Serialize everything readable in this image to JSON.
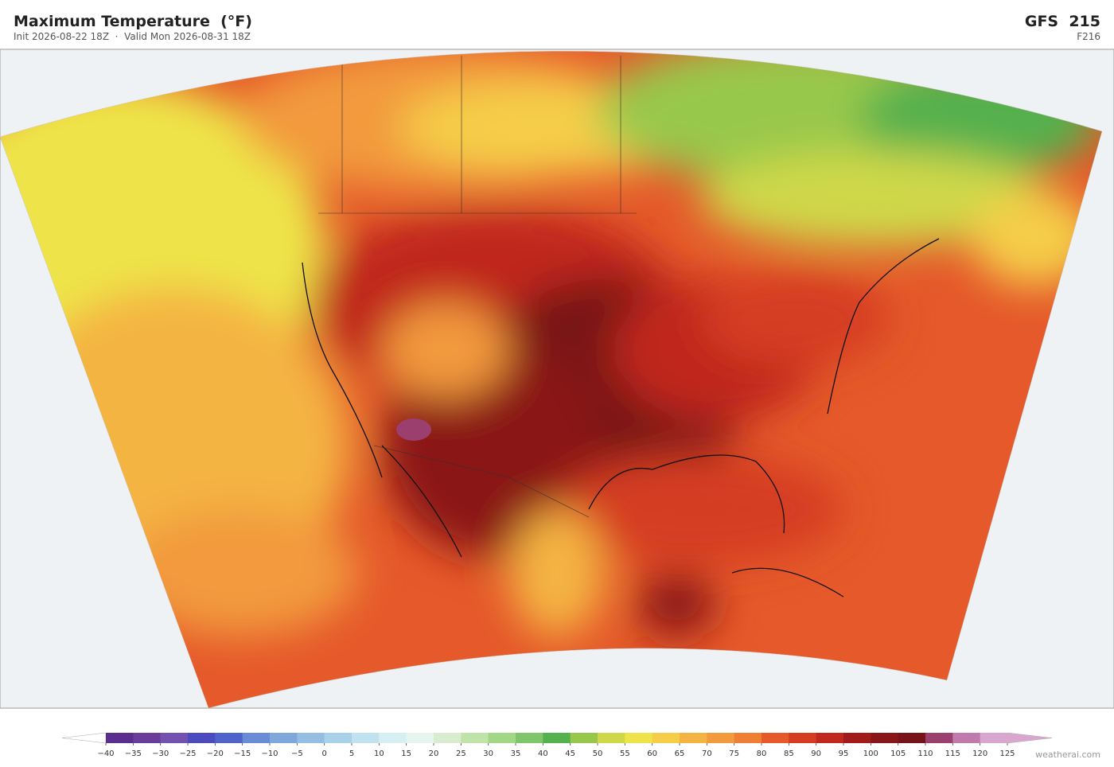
{
  "header": {
    "title": "Maximum Temperature  (°F)",
    "subtitle": "Init 2026-08-22 18Z  ·  Valid Mon 2026-08-31 18Z",
    "model": "GFS  215",
    "forecast_hour": "F216"
  },
  "colorbar": {
    "range": [
      -40,
      125
    ],
    "ticks": [
      {
        "value": -40,
        "label": "−40"
      },
      {
        "value": -35,
        "label": "−35"
      },
      {
        "value": -30,
        "label": "−30"
      },
      {
        "value": -25,
        "label": "−25"
      },
      {
        "value": -20,
        "label": "−20"
      },
      {
        "value": -15,
        "label": "−15"
      },
      {
        "value": -10,
        "label": "−10"
      },
      {
        "value": -5,
        "label": "−5"
      },
      0,
      5,
      10,
      15,
      20,
      25,
      30,
      35,
      40,
      45,
      50,
      55,
      60,
      65,
      70,
      75,
      80,
      85,
      90,
      95,
      100,
      105,
      110,
      115,
      120,
      125
    ],
    "colors": [
      "#5b2d8e",
      "#6a3d9a",
      "#7451b0",
      "#4b4bbf",
      "#4f63cc",
      "#6a8bd6",
      "#7ea7dc",
      "#94bfe3",
      "#a9d2ea",
      "#c0e2ef",
      "#d6eff3",
      "#e8f5ee",
      "#d8edd0",
      "#bfe3a8",
      "#a2d885",
      "#7fc66a",
      "#55b04e",
      "#98c84b",
      "#cfd84a",
      "#eee44a",
      "#f5cd48",
      "#f4b443",
      "#f29a3c",
      "#ee7f33",
      "#e5592a",
      "#d53c22",
      "#c0271d",
      "#a11b1b",
      "#8a1519",
      "#771219",
      "#9b3f6e",
      "#c07aac",
      "#d8a6cf"
    ],
    "under_color": "#ffffff",
    "over_color": "#d8a6cf"
  },
  "footer": {
    "credit": "weatherai.com"
  }
}
